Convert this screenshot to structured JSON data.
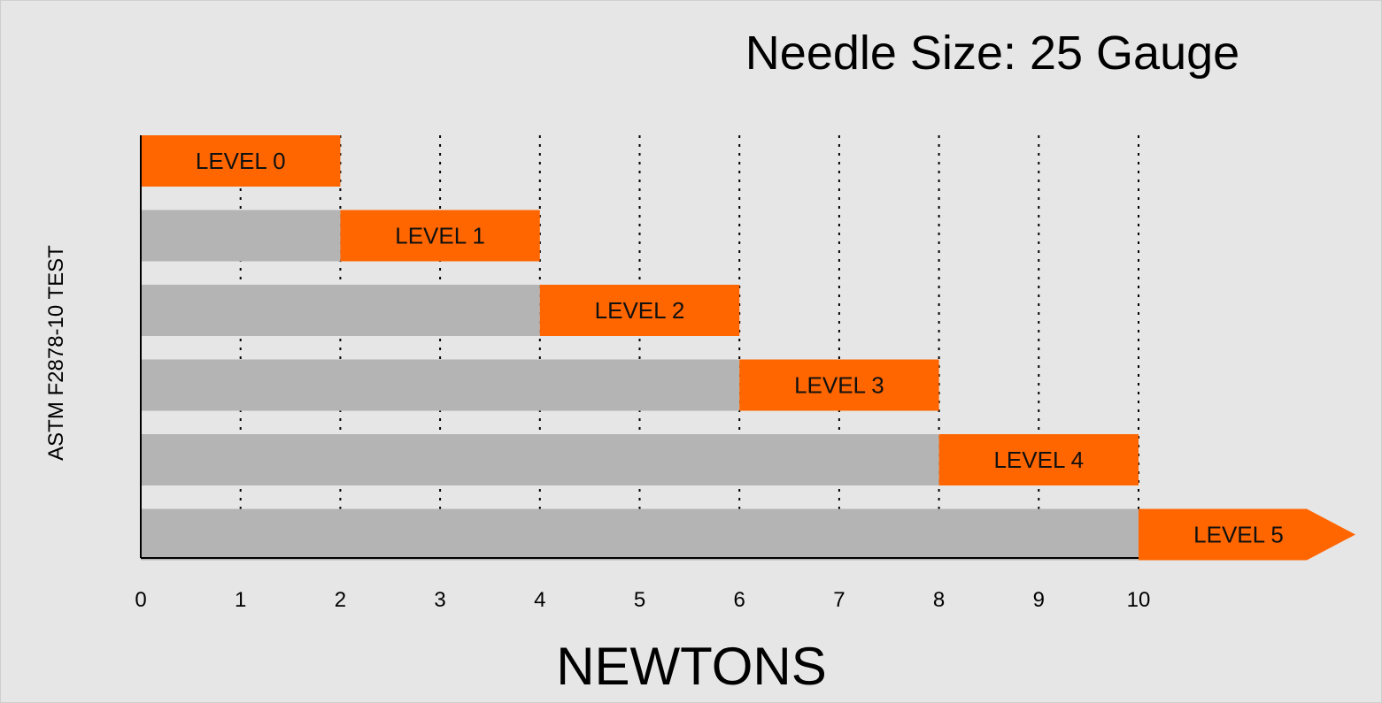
{
  "chart_data": {
    "type": "bar",
    "title": "Needle Size: 25 Gauge",
    "xlabel": "NEWTONS",
    "ylabel": "ASTM F2878-10 TEST",
    "xlim": [
      0,
      10
    ],
    "x_ticks": [
      "0",
      "1",
      "2",
      "3",
      "4",
      "5",
      "6",
      "7",
      "8",
      "9",
      "10"
    ],
    "grid": "vertical dotted",
    "series": [
      {
        "label": "LEVEL 0",
        "start": 0,
        "end": 2
      },
      {
        "label": "LEVEL 1",
        "start": 2,
        "end": 4
      },
      {
        "label": "LEVEL 2",
        "start": 4,
        "end": 6
      },
      {
        "label": "LEVEL 3",
        "start": 6,
        "end": 8
      },
      {
        "label": "LEVEL 4",
        "start": 8,
        "end": 10
      },
      {
        "label": "LEVEL 5",
        "start": 10,
        "end": null,
        "open_ended": true
      }
    ],
    "colors": {
      "level": "#ff6600",
      "base": "#b4b4b4",
      "background": "#e6e6e6"
    }
  }
}
